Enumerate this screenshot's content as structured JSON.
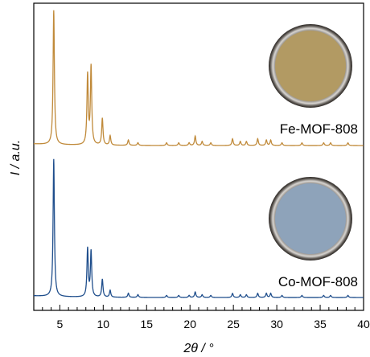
{
  "chart_data": {
    "type": "line",
    "xlabel": "2θ / °",
    "ylabel": "I / a.u.",
    "xlim": [
      2,
      40
    ],
    "x_ticks": [
      5,
      10,
      15,
      20,
      25,
      30,
      35,
      40
    ],
    "grid": false,
    "legend": "none",
    "series": [
      {
        "name": "Fe-MOF-808",
        "color": "#c08a3a",
        "swatch_color": "#b29a63",
        "baseline": 0,
        "peaks": [
          {
            "x": 4.3,
            "y": 1.0
          },
          {
            "x": 8.2,
            "y": 0.52
          },
          {
            "x": 8.6,
            "y": 0.58
          },
          {
            "x": 9.9,
            "y": 0.2
          },
          {
            "x": 10.8,
            "y": 0.07
          },
          {
            "x": 12.9,
            "y": 0.04
          },
          {
            "x": 14.0,
            "y": 0.02
          },
          {
            "x": 17.3,
            "y": 0.02
          },
          {
            "x": 18.7,
            "y": 0.02
          },
          {
            "x": 19.9,
            "y": 0.02
          },
          {
            "x": 20.6,
            "y": 0.07
          },
          {
            "x": 21.4,
            "y": 0.03
          },
          {
            "x": 22.4,
            "y": 0.02
          },
          {
            "x": 24.9,
            "y": 0.05
          },
          {
            "x": 25.8,
            "y": 0.03
          },
          {
            "x": 26.5,
            "y": 0.03
          },
          {
            "x": 27.8,
            "y": 0.05
          },
          {
            "x": 28.8,
            "y": 0.04
          },
          {
            "x": 29.3,
            "y": 0.04
          },
          {
            "x": 30.6,
            "y": 0.02
          },
          {
            "x": 32.9,
            "y": 0.02
          },
          {
            "x": 35.4,
            "y": 0.02
          },
          {
            "x": 36.2,
            "y": 0.02
          },
          {
            "x": 38.2,
            "y": 0.02
          }
        ]
      },
      {
        "name": "Co-MOF-808",
        "color": "#1f4e8c",
        "swatch_color": "#8ea3ba",
        "baseline": 0,
        "peaks": [
          {
            "x": 4.3,
            "y": 1.0
          },
          {
            "x": 8.2,
            "y": 0.35
          },
          {
            "x": 8.6,
            "y": 0.33
          },
          {
            "x": 9.9,
            "y": 0.13
          },
          {
            "x": 10.8,
            "y": 0.05
          },
          {
            "x": 12.9,
            "y": 0.03
          },
          {
            "x": 14.0,
            "y": 0.02
          },
          {
            "x": 17.3,
            "y": 0.015
          },
          {
            "x": 18.7,
            "y": 0.015
          },
          {
            "x": 19.9,
            "y": 0.015
          },
          {
            "x": 20.6,
            "y": 0.04
          },
          {
            "x": 21.4,
            "y": 0.02
          },
          {
            "x": 22.4,
            "y": 0.015
          },
          {
            "x": 24.9,
            "y": 0.03
          },
          {
            "x": 25.8,
            "y": 0.02
          },
          {
            "x": 26.5,
            "y": 0.02
          },
          {
            "x": 27.8,
            "y": 0.03
          },
          {
            "x": 28.8,
            "y": 0.03
          },
          {
            "x": 29.3,
            "y": 0.03
          },
          {
            "x": 30.6,
            "y": 0.015
          },
          {
            "x": 32.9,
            "y": 0.015
          },
          {
            "x": 35.4,
            "y": 0.015
          },
          {
            "x": 36.2,
            "y": 0.015
          },
          {
            "x": 38.2,
            "y": 0.015
          }
        ]
      }
    ]
  }
}
